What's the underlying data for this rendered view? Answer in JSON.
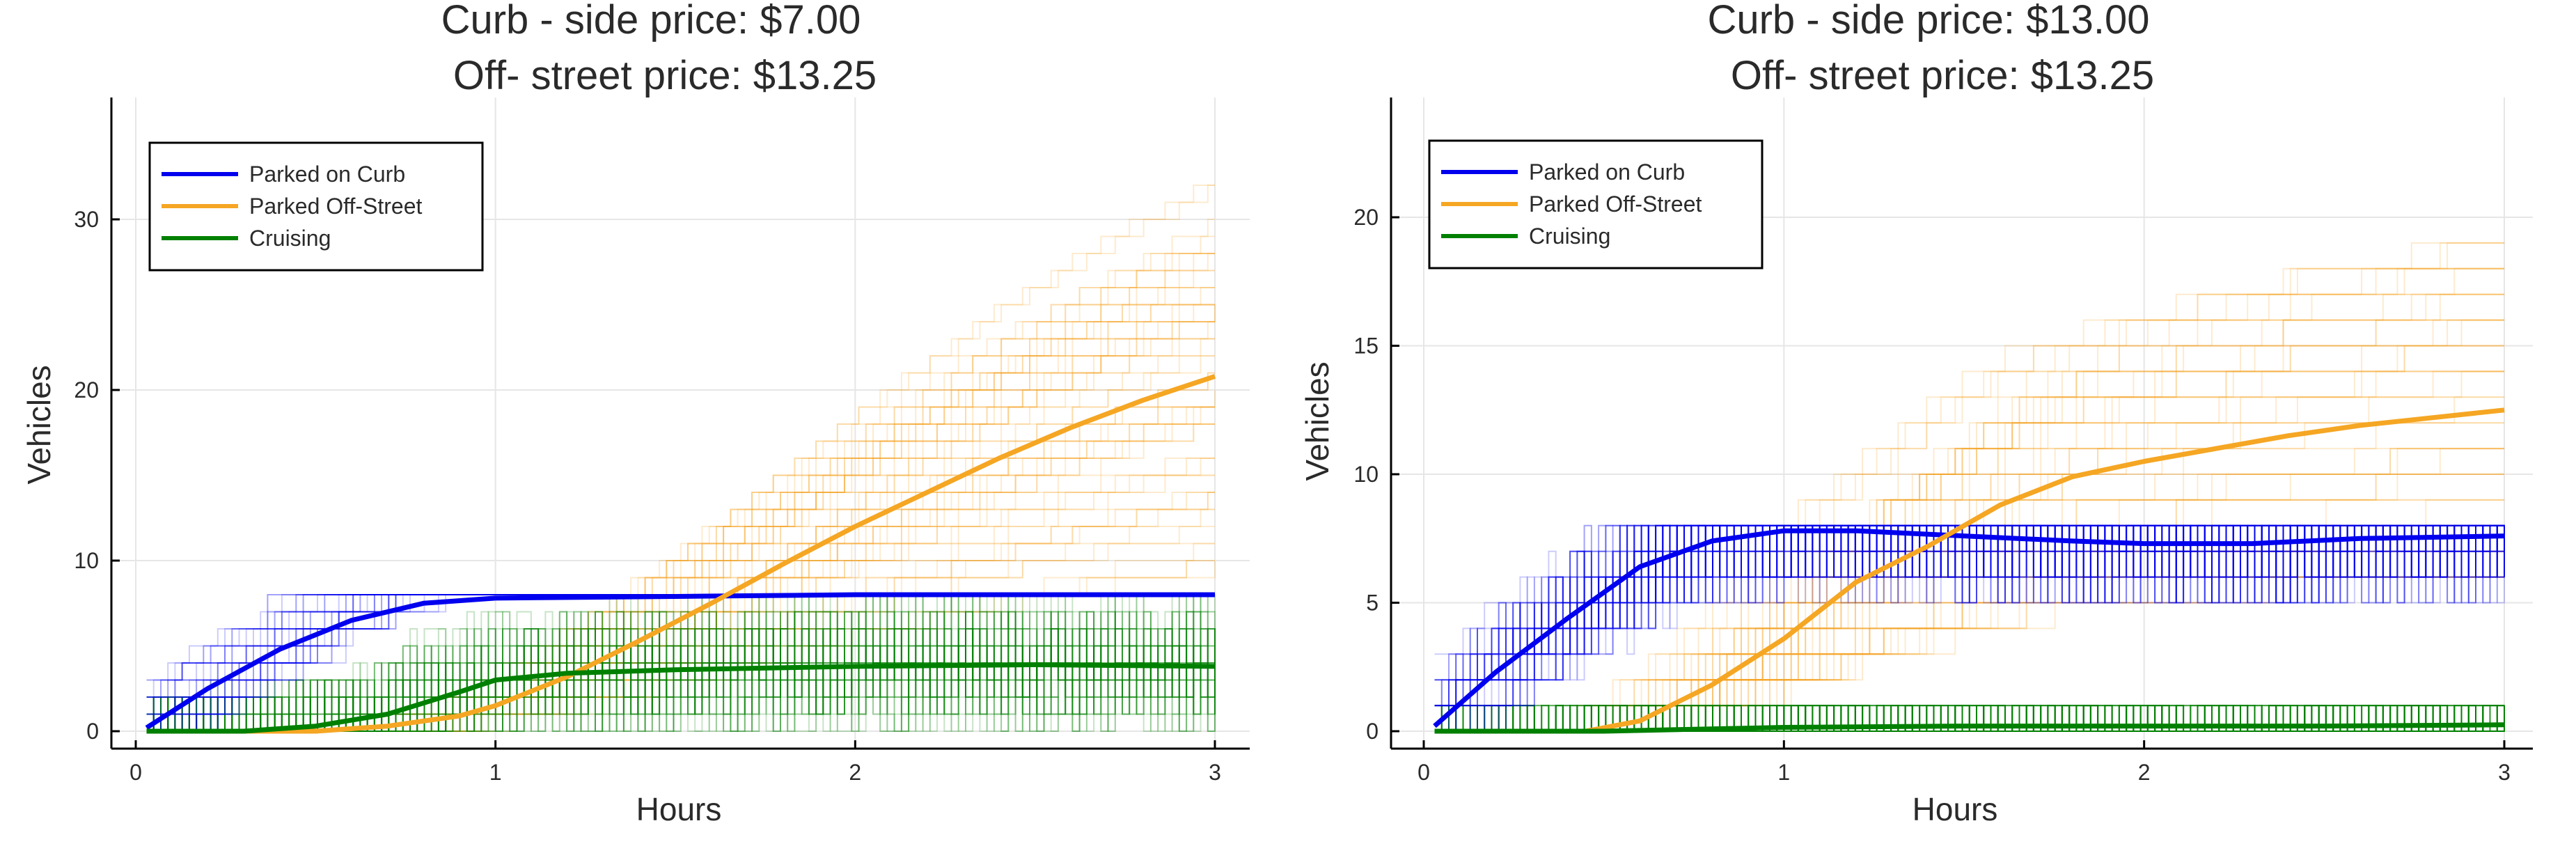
{
  "chart_data": [
    {
      "type": "line",
      "title": "Curb - side price: $7.00",
      "subtitle": "Off- street price: $13.25",
      "xlabel": "Hours",
      "ylabel": "Vehicles",
      "xlim": [
        -0.05,
        3.08
      ],
      "ylim": [
        -1,
        37
      ],
      "xticks": [
        0,
        1,
        2,
        3
      ],
      "yticks": [
        0,
        10,
        20,
        30
      ],
      "grid": true,
      "legend_position": "top-left",
      "capacity_curb": 8,
      "series": [
        {
          "name": "Parked on Curb",
          "color": "#0000ee",
          "x": [
            0.03,
            0.2,
            0.4,
            0.6,
            0.8,
            1.0,
            1.5,
            2.0,
            2.5,
            3.0
          ],
          "values": [
            0.2,
            2.5,
            4.8,
            6.5,
            7.5,
            7.8,
            7.9,
            8.0,
            8.0,
            8.0
          ]
        },
        {
          "name": "Parked Off-Street",
          "color": "#f5a623",
          "x": [
            0.03,
            0.5,
            0.7,
            0.9,
            1.0,
            1.2,
            1.4,
            1.6,
            1.8,
            2.0,
            2.2,
            2.4,
            2.6,
            2.8,
            3.0
          ],
          "values": [
            0,
            0,
            0.3,
            0.9,
            1.5,
            3.2,
            5.3,
            7.5,
            9.8,
            12.0,
            14.0,
            16.0,
            17.8,
            19.4,
            20.8
          ]
        },
        {
          "name": "Cruising",
          "color": "#008000",
          "x": [
            0.03,
            0.3,
            0.5,
            0.7,
            0.9,
            1.0,
            1.2,
            1.5,
            2.0,
            2.5,
            3.0
          ],
          "values": [
            0,
            0,
            0.3,
            1.0,
            2.3,
            3.0,
            3.4,
            3.6,
            3.8,
            3.9,
            3.8
          ]
        }
      ]
    },
    {
      "type": "line",
      "title": "Curb - side price: $13.00",
      "subtitle": "Off- street price: $13.25",
      "xlabel": "Hours",
      "ylabel": "Vehicles",
      "xlim": [
        -0.05,
        3.08
      ],
      "ylim": [
        -0.6,
        24.7
      ],
      "xticks": [
        0,
        1,
        2,
        3
      ],
      "yticks": [
        0,
        5,
        10,
        15,
        20
      ],
      "grid": true,
      "legend_position": "top-left",
      "capacity_curb": 8,
      "series": [
        {
          "name": "Parked on Curb",
          "color": "#0000ee",
          "x": [
            0.03,
            0.2,
            0.4,
            0.6,
            0.8,
            1.0,
            1.2,
            1.5,
            1.8,
            2.0,
            2.3,
            2.6,
            3.0
          ],
          "values": [
            0.2,
            2.3,
            4.4,
            6.4,
            7.4,
            7.8,
            7.8,
            7.6,
            7.4,
            7.3,
            7.3,
            7.5,
            7.6
          ]
        },
        {
          "name": "Parked Off-Street",
          "color": "#f5a623",
          "x": [
            0.03,
            0.45,
            0.6,
            0.8,
            1.0,
            1.2,
            1.4,
            1.6,
            1.8,
            2.0,
            2.2,
            2.4,
            2.6,
            2.8,
            3.0
          ],
          "values": [
            0,
            0,
            0.4,
            1.8,
            3.6,
            5.8,
            7.2,
            8.8,
            9.9,
            10.5,
            11.0,
            11.5,
            11.9,
            12.2,
            12.5
          ]
        },
        {
          "name": "Cruising",
          "color": "#008000",
          "x": [
            0.03,
            0.5,
            1.0,
            1.5,
            2.0,
            2.5,
            3.0
          ],
          "values": [
            0,
            0,
            0.15,
            0.2,
            0.2,
            0.2,
            0.25
          ]
        }
      ]
    }
  ]
}
